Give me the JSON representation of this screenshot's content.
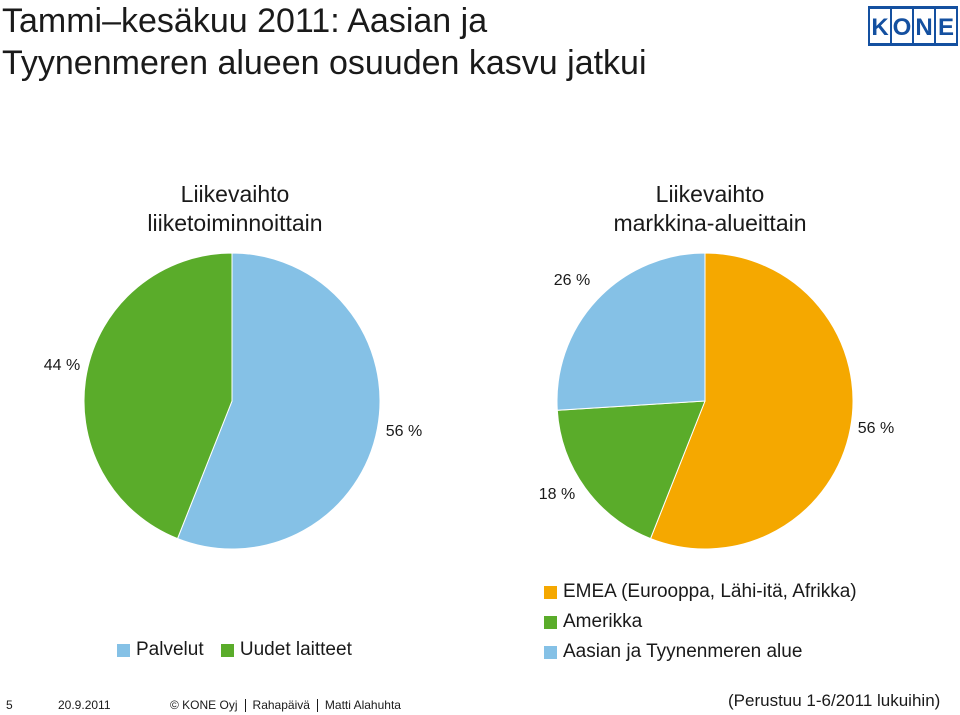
{
  "title_line1": "Tammi–kesäkuu 2011: Aasian ja",
  "title_line2": "Tyynenmeren alueen osuuden kasvu jatkui",
  "logo_text": "KONE",
  "colors": {
    "palvelut": "#85C1E6",
    "uudet": "#5AAC2A",
    "emea": "#F5A800",
    "amerikka": "#5AAC2A",
    "aasia": "#85C1E6",
    "logo": "#1450A0"
  },
  "chart_data": [
    {
      "type": "pie",
      "title_line1": "Liikevaihto",
      "title_line2": "liiketoiminnoittain",
      "slices": [
        {
          "name": "Palvelut",
          "value": 56,
          "label": "56 %",
          "color_key": "palvelut"
        },
        {
          "name": "Uudet laitteet",
          "value": 44,
          "label": "44 %",
          "color_key": "uudet"
        }
      ],
      "legend": [
        "Palvelut",
        "Uudet laitteet"
      ],
      "legend_position": "bottom"
    },
    {
      "type": "pie",
      "title_line1": "Liikevaihto",
      "title_line2": "markkina-alueittain",
      "slices": [
        {
          "name": "EMEA (Eurooppa, Lähi-itä, Afrikka)",
          "value": 56,
          "label": "56 %",
          "color_key": "emea"
        },
        {
          "name": "Amerikka",
          "value": 18,
          "label": "18 %",
          "color_key": "amerikka"
        },
        {
          "name": "Aasian ja Tyynenmeren alue",
          "value": 26,
          "label": "26 %",
          "color_key": "aasia"
        }
      ],
      "legend": [
        "EMEA (Eurooppa, Lähi-itä, Afrikka)",
        "Amerikka",
        "Aasian ja Tyynenmeren alue"
      ],
      "legend_position": "bottom"
    }
  ],
  "footer": {
    "page": "5",
    "date": "20.9.2011",
    "company": "© KONE Oyj",
    "event": "Rahapäivä",
    "author": "Matti Alahuhta",
    "note": "(Perustuu 1-6/2011 lukuihin)"
  }
}
